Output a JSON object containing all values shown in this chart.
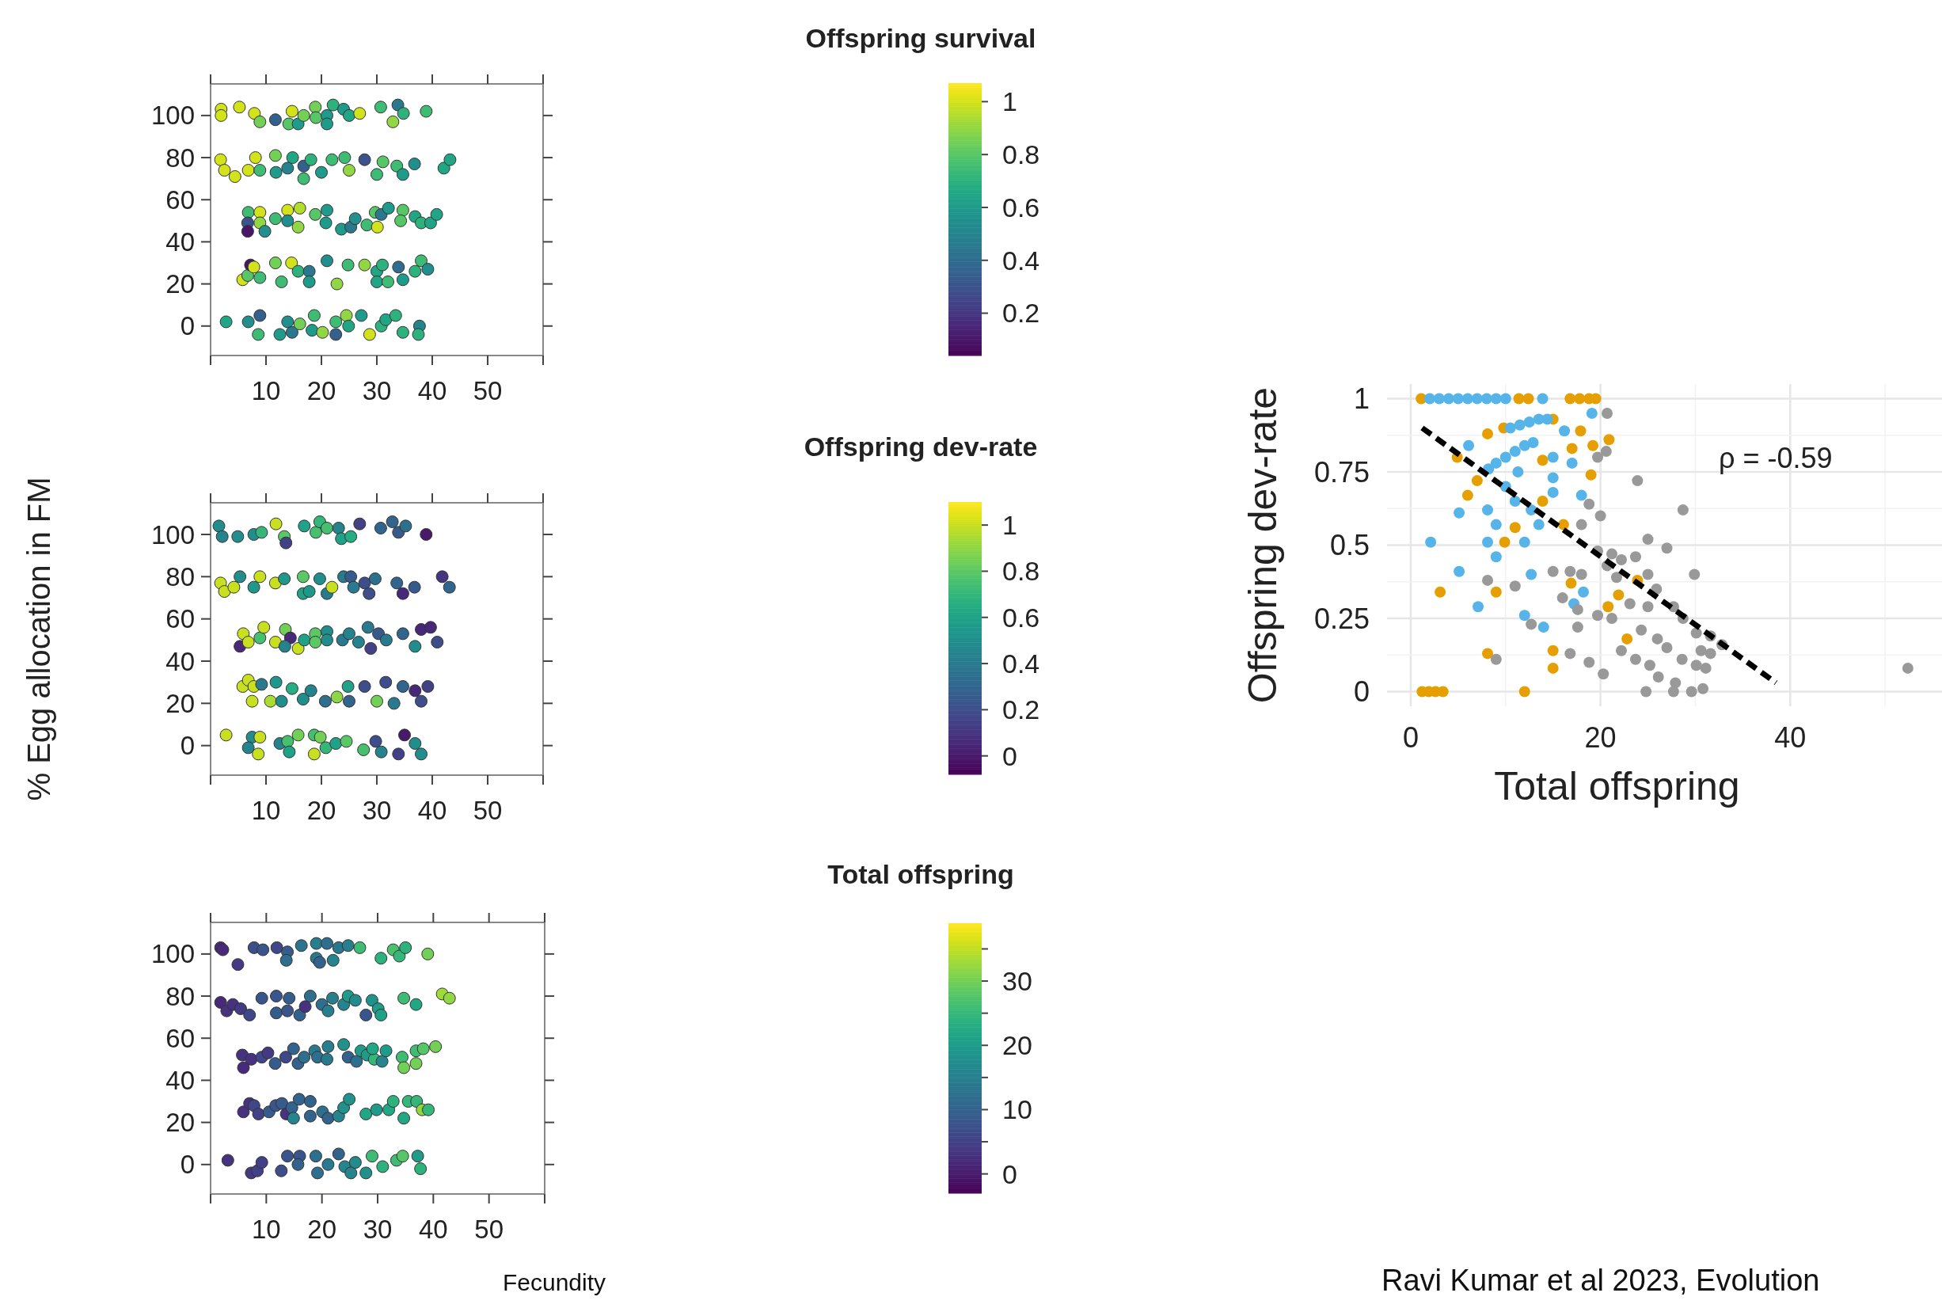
{
  "chart_data": [
    {
      "type": "scatter",
      "clabel": "Offspring survival",
      "marker": "circle",
      "xlim": [
        0,
        60
      ],
      "ylim": [
        -14,
        115
      ],
      "xticks": [
        {
          "value": 0,
          "label": null
        },
        10,
        20,
        30,
        40,
        50,
        {
          "value": 60,
          "label": null
        }
      ],
      "yticks": [
        0,
        20,
        40,
        60,
        80,
        100
      ],
      "clim": [
        0.04,
        1.07
      ],
      "cticks": [
        0.2,
        0.4,
        0.6,
        0.8,
        1
      ],
      "x": [
        1.9,
        1.9,
        5.2,
        7.9,
        8.9,
        11.7,
        14.7,
        14.1,
        15.8,
        16.8,
        18.9,
        19,
        21,
        21,
        22.1,
        24,
        25,
        26.9,
        30.7,
        33.8,
        32.9,
        34.8,
        38.9,
        1.8,
        2.5,
        4.4,
        6.8,
        8.1,
        8.9,
        11.7,
        11.8,
        13.9,
        14.8,
        16.8,
        16.8,
        18.1,
        20,
        21.9,
        24.2,
        25,
        27.8,
        31.1,
        30,
        33.6,
        34.7,
        36.8,
        42.1,
        43.2,
        6.8,
        6.7,
        6.7,
        8.9,
        8.9,
        9.8,
        11.7,
        13.9,
        13.9,
        15.8,
        16.1,
        18.9,
        21,
        20.8,
        23.6,
        25.3,
        26.1,
        28.2,
        30.1,
        29.7,
        30.8,
        32.1,
        34.7,
        34.3,
        36.9,
        38,
        39.7,
        40.8,
        5.8,
        6.7,
        7.2,
        7.8,
        8.9,
        11.7,
        12.8,
        14.6,
        15.8,
        17.8,
        17.8,
        21,
        22.8,
        24.8,
        27.8,
        30,
        31,
        30,
        32,
        33.9,
        34.7,
        36.9,
        38,
        39.2,
        2.8,
        6.8,
        8.9,
        8.6,
        12.5,
        13.9,
        14.7,
        16.1,
        18.7,
        18.3,
        20.2,
        22.6,
        22.6,
        24.5,
        24.9,
        27.2,
        28.7,
        30.8,
        31.6,
        33.4,
        34.7,
        37.7,
        37.5
      ],
      "values": [
        103,
        100,
        104,
        101,
        97,
        98,
        102,
        96,
        96,
        100,
        104,
        99,
        100,
        96,
        105,
        103,
        100,
        101,
        104,
        105,
        97,
        101,
        102,
        79,
        74,
        71,
        74,
        80,
        74,
        81,
        73,
        75,
        80,
        76,
        70,
        79,
        73,
        79,
        80,
        74,
        79,
        78,
        72,
        76,
        72,
        77,
        75,
        79,
        54,
        49,
        45,
        54,
        49,
        45,
        51,
        55,
        50,
        47,
        56,
        53,
        55,
        49,
        46,
        47,
        51,
        48,
        47,
        54,
        53,
        56,
        55,
        50,
        52,
        49,
        49,
        53,
        22,
        24,
        29,
        28,
        23,
        30,
        21,
        30,
        26,
        26,
        21,
        31,
        20,
        29,
        29,
        26,
        29,
        21,
        21,
        28,
        22,
        26,
        31,
        27,
        2,
        2,
        5,
        -4,
        -4,
        2,
        -3,
        1,
        5,
        -2,
        -3,
        2,
        -4,
        5,
        0,
        5,
        -4,
        0,
        3,
        5,
        -3,
        0,
        -4
      ],
      "cvalues": [
        1,
        1,
        1,
        1,
        0.85,
        0.35,
        1,
        0.8,
        0.6,
        0.85,
        0.85,
        0.8,
        0.6,
        0.6,
        0.7,
        0.6,
        0.65,
        1,
        0.75,
        0.45,
        0.9,
        0.7,
        0.75,
        1,
        1,
        1,
        1,
        1,
        0.75,
        0.85,
        0.6,
        0.5,
        0.65,
        0.35,
        0.75,
        0.7,
        0.6,
        0.75,
        0.75,
        0.9,
        0.3,
        0.8,
        0.75,
        0.75,
        0.6,
        0.55,
        0.65,
        0.65,
        0.75,
        0.3,
        0.1,
        1,
        0.9,
        0.55,
        0.75,
        1,
        0.55,
        0.9,
        0.95,
        0.8,
        0.6,
        0.6,
        0.6,
        0.45,
        0.55,
        0.75,
        1,
        0.8,
        0.45,
        0.6,
        0.8,
        0.8,
        0.65,
        0.7,
        0.65,
        0.65,
        1,
        0.8,
        0.1,
        1,
        0.75,
        0.85,
        0.75,
        1,
        0.7,
        0.45,
        0.6,
        0.55,
        0.9,
        0.75,
        0.9,
        0.65,
        0.7,
        0.65,
        0.75,
        0.4,
        0.6,
        0.7,
        0.75,
        0.55,
        0.65,
        0.55,
        0.35,
        0.75,
        0.6,
        0.55,
        0.45,
        0.85,
        0.75,
        0.6,
        0.9,
        0.75,
        0.35,
        0.9,
        0.65,
        0.6,
        1,
        0.7,
        0.65,
        0.7,
        0.7,
        0.5,
        0.7
      ]
    },
    {
      "type": "scatter",
      "clabel": "Offspring dev-rate",
      "ylabel": "% Egg allocation in FM",
      "marker": "circle",
      "xlim": [
        0,
        60
      ],
      "ylim": [
        -14,
        115
      ],
      "xticks": [
        {
          "value": 0,
          "label": null
        },
        10,
        20,
        30,
        40,
        50,
        {
          "value": 60,
          "label": null
        }
      ],
      "yticks": [
        0,
        20,
        40,
        60,
        80,
        100
      ],
      "clim": [
        -0.08,
        1.1
      ],
      "cticks": [
        0,
        0.2,
        0.4,
        0.6,
        0.8,
        1
      ],
      "x": [
        1.5,
        2.1,
        4.9,
        7.8,
        9.2,
        11.8,
        13.3,
        13.6,
        16.9,
        19,
        19.7,
        21,
        23.1,
        23.6,
        25.3,
        26.9,
        30.7,
        32.8,
        33.9,
        35.2,
        38.9,
        1.8,
        2.5,
        4.2,
        5.3,
        7.8,
        8.9,
        11.7,
        13.3,
        16.7,
        16.7,
        17.8,
        19.7,
        21,
        21.9,
        24,
        25.3,
        25.8,
        27.8,
        29.7,
        28.6,
        33.6,
        34.7,
        36.8,
        41.8,
        43.1,
        5.9,
        5.3,
        6.8,
        8.9,
        9.6,
        11.7,
        13.5,
        14.4,
        13.4,
        15.8,
        16.9,
        18.9,
        18.9,
        21,
        21,
        23.8,
        25,
        26.7,
        28.4,
        28.9,
        30.3,
        31.7,
        34.7,
        36.9,
        38,
        39.7,
        40.9,
        5.8,
        6.8,
        7.8,
        7.5,
        9.2,
        10.8,
        11.8,
        12.8,
        14.7,
        16.7,
        18.1,
        20.7,
        22.8,
        24.8,
        25,
        27.8,
        30,
        31.6,
        33.1,
        34.7,
        36.9,
        38,
        39.2,
        2.8,
        7.5,
        8.9,
        6.8,
        8.6,
        12.5,
        13.9,
        15.8,
        14.2,
        18.7,
        19.8,
        18.7,
        20.8,
        22.6,
        24.5,
        27.6,
        29.8,
        30.8,
        33.9,
        35,
        36.9,
        38
      ],
      "values": [
        104,
        99,
        99,
        100,
        101,
        105,
        99,
        96,
        104,
        101,
        106,
        103,
        103,
        98,
        99,
        105,
        103,
        106,
        101,
        104,
        100,
        77,
        73,
        75,
        80,
        75,
        80,
        77,
        79,
        80,
        72,
        73,
        79,
        72,
        75,
        80,
        80,
        75,
        77,
        79,
        72,
        77,
        72,
        75,
        80,
        75,
        53,
        47,
        49,
        51,
        56,
        49,
        55,
        51,
        47,
        46,
        50,
        53,
        49,
        54,
        50,
        50,
        53,
        49,
        56,
        46,
        53,
        50,
        53,
        47,
        55,
        56,
        49,
        28,
        31,
        28,
        21,
        29,
        21,
        30,
        21,
        27,
        22,
        26,
        21,
        23,
        28,
        21,
        28,
        21,
        30,
        20,
        28,
        26,
        21,
        28,
        5,
        4,
        4,
        -1,
        -4,
        1,
        2,
        5,
        -3,
        5,
        4,
        -4,
        -1,
        1,
        2,
        -2,
        2,
        -3,
        -4,
        5,
        1,
        -4
      ],
      "cvalues": [
        0.5,
        0.45,
        0.5,
        0.5,
        0.7,
        1,
        0.8,
        0.15,
        0.6,
        0.75,
        0.7,
        0.75,
        0.45,
        0.6,
        0.65,
        0.15,
        0.3,
        0.3,
        0.25,
        0.35,
        0,
        1,
        1,
        1,
        0.5,
        0.55,
        1,
        1,
        0.55,
        0.8,
        0.6,
        0.55,
        0.5,
        0.4,
        1,
        0.4,
        0.25,
        0.4,
        0.2,
        0.35,
        0.2,
        0.3,
        0.05,
        0.25,
        0.1,
        0.3,
        1,
        0.05,
        1,
        0.75,
        1,
        1,
        0.85,
        0.05,
        0.45,
        1,
        0.6,
        0.8,
        0.8,
        0.5,
        0.5,
        0.4,
        0.45,
        0.45,
        0.4,
        0.15,
        0.25,
        0.4,
        0.3,
        0.5,
        0.05,
        0.05,
        0.2,
        1,
        1,
        1,
        1,
        0.4,
        0.95,
        0.55,
        0.5,
        0.65,
        0.5,
        0.45,
        0.35,
        0.9,
        0.6,
        0.3,
        0.2,
        0.85,
        0.2,
        0.4,
        0.3,
        0.05,
        0.2,
        0.15,
        1,
        0.5,
        1,
        0.45,
        1,
        0.45,
        0.75,
        0.85,
        0.6,
        0.75,
        0.85,
        1,
        0.7,
        0.6,
        0.8,
        0.75,
        0.2,
        0.45,
        0.15,
        0,
        0.5,
        0.5
      ]
    },
    {
      "type": "scatter",
      "clabel": "Total offspring",
      "xlabel": "Fecundity",
      "marker": "circle",
      "xlim": [
        0,
        60
      ],
      "ylim": [
        -14,
        115
      ],
      "xticks": [
        {
          "value": 0,
          "label": null
        },
        10,
        20,
        30,
        40,
        50,
        {
          "value": 60,
          "label": null
        }
      ],
      "yticks": [
        0,
        20,
        40,
        60,
        80,
        100
      ],
      "clim": [
        -3,
        39
      ],
      "cticks": [
        0,
        {
          "value": 5,
          "label": null
        },
        10,
        {
          "value": 15,
          "label": null
        },
        20,
        {
          "value": 25,
          "label": null
        },
        30,
        {
          "value": 35,
          "label": null
        }
      ],
      "x": [
        1.8,
        2.2,
        4.9,
        7.8,
        9.4,
        11.9,
        13.8,
        13.6,
        16.3,
        19,
        19,
        19.6,
        20.9,
        22,
        23,
        24.7,
        26.8,
        30.6,
        32.8,
        33.9,
        35,
        39,
        1.8,
        2.9,
        4,
        5.4,
        7,
        9.2,
        11.8,
        11.8,
        14.1,
        13.8,
        16,
        17,
        17.9,
        20,
        21.9,
        21.1,
        23.9,
        24.7,
        26,
        27.9,
        29,
        30.1,
        30.6,
        34.7,
        36.9,
        41.6,
        42.9,
        5.7,
        5.9,
        7.3,
        9.2,
        10.3,
        11.6,
        13.5,
        14.9,
        15.7,
        16.8,
        18.7,
        19.2,
        20.9,
        21.1,
        23.9,
        24.7,
        26.2,
        27,
        28.1,
        29.4,
        29.1,
        30.8,
        31.5,
        34.4,
        34.7,
        36.9,
        36.9,
        38.2,
        40.4,
        5.9,
        7,
        7.8,
        8.6,
        10.5,
        11.7,
        12.8,
        13.6,
        14.6,
        15.9,
        14.9,
        17.9,
        17.9,
        20.1,
        21.1,
        23,
        23.9,
        24.9,
        27.9,
        29.8,
        32,
        32.8,
        34.7,
        35.5,
        37,
        38,
        39.1,
        3.1,
        7.3,
        8.4,
        9.2,
        12.7,
        13.8,
        16,
        15.7,
        18.9,
        19.2,
        21.1,
        23,
        24.1,
        25.2,
        26,
        27.9,
        29,
        30.9,
        33.4,
        34.5,
        37.2,
        37.7
      ],
      "values": [
        103,
        102,
        95,
        103,
        102,
        103,
        101,
        97,
        104,
        105,
        98,
        96,
        105,
        97,
        103,
        104,
        103,
        98,
        102,
        99,
        103,
        100,
        77,
        73,
        76,
        74,
        71,
        79,
        80,
        72,
        79,
        73,
        71,
        75,
        80,
        76,
        79,
        73,
        76,
        80,
        78,
        71,
        78,
        74,
        71,
        79,
        76,
        81,
        79,
        52,
        46,
        50,
        51,
        53,
        48,
        51,
        55,
        48,
        51,
        54,
        51,
        50,
        56,
        57,
        51,
        49,
        54,
        52,
        50,
        55,
        49,
        54,
        51,
        46,
        48,
        54,
        55,
        56,
        25,
        29,
        28,
        24,
        25,
        28,
        29,
        24,
        27,
        31,
        22,
        30,
        23,
        25,
        22,
        23,
        27,
        31,
        24,
        26,
        26,
        30,
        22,
        30,
        30,
        26,
        26,
        2,
        -4,
        -3,
        1,
        -3,
        4,
        4,
        0,
        4,
        -4,
        0,
        5,
        -1,
        -4,
        1,
        -4,
        4,
        -1,
        2,
        4,
        4,
        -2
      ],
      "cvalues": [
        2,
        2,
        4,
        7,
        8,
        6,
        9,
        12,
        13,
        15,
        14,
        10,
        12,
        16,
        14,
        15,
        26,
        24,
        27,
        25,
        24,
        30,
        2,
        3,
        3,
        4,
        6,
        8,
        8,
        9,
        9,
        8,
        10,
        3,
        12,
        12,
        15,
        15,
        16,
        20,
        17,
        8,
        18,
        20,
        21,
        26,
        22,
        33,
        32,
        3,
        2,
        3,
        6,
        4,
        9,
        6,
        10,
        10,
        12,
        14,
        12,
        14,
        15,
        18,
        10,
        12,
        20,
        20,
        25,
        22,
        16,
        20,
        26,
        30,
        30,
        26,
        28,
        30,
        3,
        3,
        6,
        5,
        9,
        8,
        9,
        3,
        10,
        10,
        16,
        10,
        10,
        12,
        10,
        16,
        18,
        18,
        22,
        20,
        22,
        24,
        22,
        25,
        25,
        32,
        25,
        3,
        4,
        5,
        5,
        7,
        8,
        8,
        10,
        12,
        12,
        14,
        10,
        16,
        16,
        17,
        18,
        26,
        24,
        26,
        28,
        20,
        24
      ]
    },
    {
      "type": "scatter",
      "xlabel": "Total offspring",
      "ylabel": "Offspring dev-rate",
      "grid": true,
      "marker": "circle",
      "xlim": [
        -2.5,
        56
      ],
      "ylim": [
        -0.05,
        1.05
      ],
      "xticks": [
        0,
        {
          "value": 10,
          "label": null
        },
        20,
        {
          "value": 30,
          "label": null
        },
        40,
        {
          "value": 50,
          "label": null
        }
      ],
      "yticks": [
        0,
        {
          "value": 0.125,
          "label": null
        },
        0.25,
        {
          "value": 0.375,
          "label": null
        },
        0.5,
        {
          "value": 0.625,
          "label": null
        },
        0.75,
        {
          "value": 0.875,
          "label": null
        },
        1
      ],
      "annotations": [
        "ρ = -0.59",
        "Ravi Kumar et al 2023, Evolution"
      ],
      "series": [
        {
          "color": "#e69f00",
          "x": [
            1.1,
            11.4,
            12.4,
            16.8,
            17.8,
            18.8,
            19.5,
            15,
            8.1,
            9.8,
            17.9,
            20.9,
            19.2,
            17,
            4.9,
            13.9,
            7,
            19,
            6,
            13.9,
            11,
            16.1,
            9.9,
            3.1,
            9,
            16.9,
            23.9,
            21.9,
            20.8,
            22.8,
            8.1,
            15,
            15,
            1.2,
            1.9,
            2.6,
            3.4,
            12
          ],
          "values": [
            1,
            1,
            1,
            1,
            1,
            1,
            1,
            0.93,
            0.88,
            0.9,
            0.89,
            0.86,
            0.84,
            0.83,
            0.8,
            0.79,
            0.72,
            0.74,
            0.67,
            0.65,
            0.56,
            0.57,
            0.51,
            0.34,
            0.34,
            0.37,
            0.38,
            0.33,
            0.29,
            0.18,
            0.13,
            0.14,
            0.08,
            0,
            0,
            0,
            0,
            0
          ]
        },
        {
          "color": "#56b4e9",
          "x": [
            2,
            3,
            4,
            5,
            6,
            7,
            8,
            9,
            10,
            13.9,
            19.1,
            10.5,
            11.5,
            12.5,
            13.5,
            14.4,
            6.1,
            8.2,
            9,
            10,
            11,
            12,
            12.9,
            16.2,
            15,
            17,
            15,
            11.3,
            10,
            18,
            15,
            5.1,
            8.1,
            11,
            12.7,
            9,
            13.5,
            2.1,
            8.1,
            12,
            9,
            5.1,
            12.7,
            18.2,
            17.2,
            7.1,
            12,
            14
          ],
          "values": [
            1,
            1,
            1,
            1,
            1,
            1,
            1,
            1,
            1,
            1,
            0.95,
            0.9,
            0.91,
            0.92,
            0.93,
            0.93,
            0.84,
            0.76,
            0.78,
            0.8,
            0.82,
            0.84,
            0.85,
            0.89,
            0.8,
            0.78,
            0.73,
            0.75,
            0.7,
            0.67,
            0.68,
            0.61,
            0.62,
            0.65,
            0.62,
            0.57,
            0.57,
            0.51,
            0.51,
            0.51,
            0.46,
            0.41,
            0.4,
            0.34,
            0.3,
            0.29,
            0.26,
            0.22
          ]
        },
        {
          "color": "#999999",
          "x": [
            20.7,
            20.6,
            19.7,
            23.9,
            28.7,
            18.8,
            20,
            18,
            25,
            27,
            19.7,
            21.2,
            22.2,
            23.7,
            20.7,
            29.9,
            8.1,
            11,
            15,
            16.8,
            18,
            21.7,
            25.9,
            25,
            16,
            17.6,
            19.7,
            21.2,
            23.1,
            25,
            27.7,
            28.7,
            30.1,
            31.6,
            32.8,
            12.7,
            17.6,
            24.3,
            26,
            27,
            22.2,
            23.7,
            25.2,
            28.6,
            30.1,
            31.1,
            9,
            16.8,
            18.8,
            20.3,
            26.1,
            27.9,
            24.8,
            27.7,
            29.6,
            30.8,
            52.4,
            31.6,
            30.6
          ],
          "values": [
            0.95,
            0.82,
            0.8,
            0.72,
            0.62,
            0.64,
            0.6,
            0.57,
            0.52,
            0.49,
            0.48,
            0.47,
            0.45,
            0.46,
            0.43,
            0.4,
            0.38,
            0.36,
            0.41,
            0.41,
            0.4,
            0.39,
            0.35,
            0.4,
            0.32,
            0.28,
            0.26,
            0.25,
            0.3,
            0.29,
            0.29,
            0.25,
            0.2,
            0.19,
            0.16,
            0.23,
            0.22,
            0.21,
            0.18,
            0.15,
            0.14,
            0.11,
            0.09,
            0.11,
            0.09,
            0.08,
            0.11,
            0.13,
            0.1,
            0.06,
            0.05,
            0.03,
            0,
            0,
            0,
            0.01,
            0.08,
            0.13,
            0.14
          ]
        },
        {
          "type": "line",
          "color": "#000000",
          "line_style": "dashed",
          "marker": "none",
          "x": [
            1.2,
            38.5
          ],
          "values": [
            0.9,
            0.03
          ]
        }
      ]
    }
  ]
}
